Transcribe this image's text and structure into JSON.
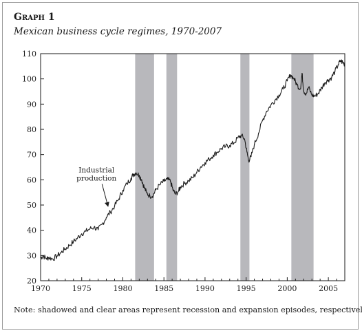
{
  "figure": {
    "label": "Graph 1",
    "title": "Mexican business cycle regimes, 1970-2007",
    "note": "Note: shadowed and clear areas represent recession and expansion episodes, respectively."
  },
  "chart_data": {
    "type": "line",
    "title": "Mexican business cycle regimes, 1970-2007",
    "xlabel": "",
    "ylabel": "",
    "xlim": [
      1970,
      2007
    ],
    "ylim": [
      20,
      110
    ],
    "x_ticks": [
      1970,
      1975,
      1980,
      1985,
      1990,
      1995,
      2000,
      2005
    ],
    "y_ticks": [
      20,
      30,
      40,
      50,
      60,
      70,
      80,
      90,
      100,
      110
    ],
    "grid": false,
    "legend": "none",
    "colors": {
      "line": "#1a1a1a",
      "recession": "#b8b8bc",
      "axis": "#1a1a1a"
    },
    "recessions": [
      {
        "start": 1981.5,
        "end": 1983.8
      },
      {
        "start": 1985.3,
        "end": 1986.6
      },
      {
        "start": 1994.3,
        "end": 1995.4
      },
      {
        "start": 2000.5,
        "end": 2003.2
      }
    ],
    "series": [
      {
        "name": "Industrial production",
        "points": [
          [
            1970.0,
            29.0
          ],
          [
            1970.3,
            29.8
          ],
          [
            1970.7,
            28.8
          ],
          [
            1971.0,
            29.2
          ],
          [
            1971.5,
            28.6
          ],
          [
            1972.0,
            29.8
          ],
          [
            1972.5,
            31.2
          ],
          [
            1973.0,
            32.6
          ],
          [
            1973.5,
            34.0
          ],
          [
            1974.0,
            35.5
          ],
          [
            1974.5,
            37.0
          ],
          [
            1975.0,
            38.6
          ],
          [
            1975.5,
            39.6
          ],
          [
            1976.0,
            40.6
          ],
          [
            1976.5,
            41.2
          ],
          [
            1977.0,
            40.2
          ],
          [
            1977.5,
            42.4
          ],
          [
            1978.0,
            45.2
          ],
          [
            1978.5,
            47.2
          ],
          [
            1979.0,
            49.6
          ],
          [
            1979.5,
            52.4
          ],
          [
            1980.0,
            55.8
          ],
          [
            1980.5,
            58.4
          ],
          [
            1981.0,
            60.6
          ],
          [
            1981.3,
            62.2
          ],
          [
            1981.6,
            62.8
          ],
          [
            1982.0,
            61.8
          ],
          [
            1982.3,
            60.0
          ],
          [
            1982.6,
            57.0
          ],
          [
            1982.9,
            54.8
          ],
          [
            1983.3,
            53.5
          ],
          [
            1983.7,
            54.0
          ],
          [
            1984.0,
            56.0
          ],
          [
            1984.5,
            58.0
          ],
          [
            1985.0,
            59.4
          ],
          [
            1985.4,
            60.2
          ],
          [
            1985.8,
            59.4
          ],
          [
            1986.1,
            56.0
          ],
          [
            1986.4,
            54.3
          ],
          [
            1986.8,
            55.6
          ],
          [
            1987.0,
            57.2
          ],
          [
            1987.5,
            58.6
          ],
          [
            1988.0,
            59.6
          ],
          [
            1988.5,
            60.8
          ],
          [
            1989.0,
            63.0
          ],
          [
            1989.5,
            65.2
          ],
          [
            1990.0,
            66.8
          ],
          [
            1990.5,
            68.2
          ],
          [
            1991.0,
            69.8
          ],
          [
            1991.5,
            71.0
          ],
          [
            1992.0,
            72.4
          ],
          [
            1992.5,
            73.2
          ],
          [
            1993.0,
            73.6
          ],
          [
            1993.5,
            74.6
          ],
          [
            1994.0,
            76.6
          ],
          [
            1994.4,
            77.6
          ],
          [
            1994.8,
            76.2
          ],
          [
            1995.1,
            71.0
          ],
          [
            1995.3,
            67.6
          ],
          [
            1995.6,
            69.2
          ],
          [
            1996.0,
            74.0
          ],
          [
            1996.5,
            78.4
          ],
          [
            1997.0,
            83.6
          ],
          [
            1997.5,
            87.2
          ],
          [
            1998.0,
            89.6
          ],
          [
            1998.5,
            91.6
          ],
          [
            1999.0,
            93.6
          ],
          [
            1999.5,
            96.0
          ],
          [
            2000.0,
            99.2
          ],
          [
            2000.4,
            101.6
          ],
          [
            2000.8,
            100.2
          ],
          [
            2001.2,
            97.6
          ],
          [
            2001.6,
            96.0
          ],
          [
            2001.8,
            102.2
          ],
          [
            2002.0,
            95.2
          ],
          [
            2002.3,
            94.2
          ],
          [
            2002.6,
            96.6
          ],
          [
            2003.0,
            93.6
          ],
          [
            2003.4,
            93.2
          ],
          [
            2003.8,
            94.4
          ],
          [
            2004.2,
            96.6
          ],
          [
            2004.6,
            98.6
          ],
          [
            2005.0,
            99.6
          ],
          [
            2005.4,
            100.6
          ],
          [
            2005.8,
            103.0
          ],
          [
            2006.2,
            105.6
          ],
          [
            2006.5,
            107.2
          ],
          [
            2006.8,
            106.4
          ],
          [
            2007.0,
            105.8
          ]
        ]
      }
    ],
    "annotations": [
      {
        "lines": [
          "Industrial",
          "production"
        ],
        "x": 1976.8,
        "y": 63.0,
        "arrow_to": [
          1978.2,
          49.5
        ]
      }
    ]
  }
}
